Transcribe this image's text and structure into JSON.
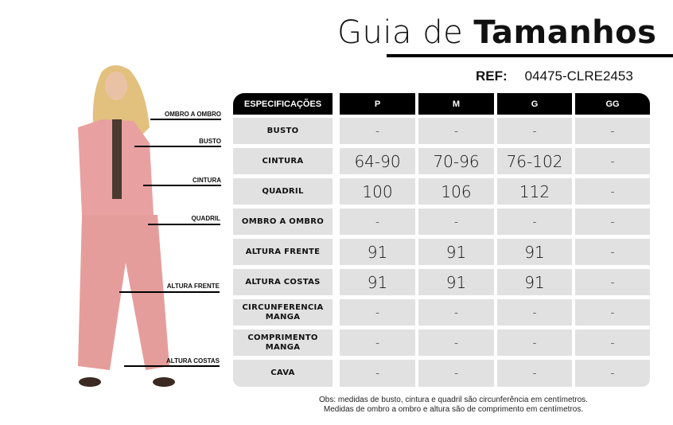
{
  "header": {
    "title_light": "Guia de",
    "title_bold": "Tamanhos",
    "ref_label": "REF:",
    "ref_value": "04475-CLRE2453"
  },
  "figure": {
    "labels": [
      "OMBRO A OMBRO",
      "BUSTO",
      "CINTURA",
      "QUADRIL",
      "ALTURA FRENTE",
      "ALTURA COSTAS"
    ],
    "outfit_color": "#e8a1a0"
  },
  "table": {
    "headers": [
      "ESPECIFICAÇÕES",
      "P",
      "M",
      "G",
      "GG"
    ],
    "rows": [
      {
        "spec": "BUSTO",
        "values": [
          "-",
          "-",
          "-",
          "-"
        ]
      },
      {
        "spec": "CINTURA",
        "values": [
          "64-90",
          "70-96",
          "76-102",
          "-"
        ]
      },
      {
        "spec": "QUADRIL",
        "values": [
          "100",
          "106",
          "112",
          "-"
        ]
      },
      {
        "spec": "OMBRO A OMBRO",
        "values": [
          "-",
          "-",
          "-",
          "-"
        ]
      },
      {
        "spec": "ALTURA FRENTE",
        "values": [
          "91",
          "91",
          "91",
          "-"
        ]
      },
      {
        "spec": "ALTURA COSTAS",
        "values": [
          "91",
          "91",
          "91",
          "-"
        ]
      },
      {
        "spec": "CIRCUNFERENCIA MANGA",
        "values": [
          "-",
          "-",
          "-",
          "-"
        ]
      },
      {
        "spec": "COMPRIMENTO MANGA",
        "values": [
          "-",
          "-",
          "-",
          "-"
        ]
      },
      {
        "spec": "CAVA",
        "values": [
          "-",
          "-",
          "-",
          "-"
        ]
      }
    ]
  },
  "notes": [
    "Obs: medidas de busto, cintura e quadril são circunferência em centímetros.",
    "Medidas de ombro a ombro e altura são de comprimento em centímetros."
  ]
}
